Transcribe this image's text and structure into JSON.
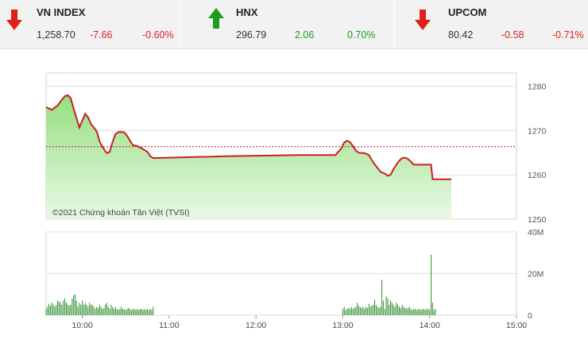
{
  "indices": [
    {
      "name": "VN INDEX",
      "value": "1,258.70",
      "change": "-7.66",
      "percent": "-0.60%",
      "direction": "down",
      "color": "#e0201b"
    },
    {
      "name": "HNX",
      "value": "296.79",
      "change": "2.06",
      "percent": "0.70%",
      "direction": "up",
      "color": "#1a9e1a"
    },
    {
      "name": "UPCOM",
      "value": "80.42",
      "change": "-0.58",
      "percent": "-0.71%",
      "direction": "down",
      "color": "#e0201b"
    }
  ],
  "chart_data": {
    "type": "area",
    "watermark": "©2021 Chứng khoán Tân Việt (TVSI)",
    "reference": 1266.36,
    "ylim": [
      1250,
      1283
    ],
    "y_ticks": [
      "1280",
      "1270",
      "1260",
      "1250"
    ],
    "y_tick_values": [
      1280,
      1270,
      1260,
      1250
    ],
    "x_ticks": [
      "10:00",
      "11:00",
      "12:00",
      "13:00",
      "14:00",
      "15:00"
    ],
    "x_tick_values": [
      600,
      660,
      720,
      780,
      840,
      900
    ],
    "xlim": [
      575,
      900
    ],
    "price": [
      [
        575,
        1275.3
      ],
      [
        579,
        1274.7
      ],
      [
        583,
        1275.7
      ],
      [
        585,
        1276.6
      ],
      [
        588,
        1277.8
      ],
      [
        590,
        1278.0
      ],
      [
        592,
        1277.3
      ],
      [
        594,
        1275.0
      ],
      [
        596,
        1272.8
      ],
      [
        598,
        1270.7
      ],
      [
        599,
        1271.5
      ],
      [
        601,
        1273.0
      ],
      [
        602,
        1273.8
      ],
      [
        604,
        1273.0
      ],
      [
        606,
        1271.5
      ],
      [
        608,
        1270.7
      ],
      [
        610,
        1269.8
      ],
      [
        612,
        1267.5
      ],
      [
        614,
        1266.3
      ],
      [
        616,
        1265.3
      ],
      [
        617,
        1264.9
      ],
      [
        619,
        1265.2
      ],
      [
        621,
        1267.5
      ],
      [
        623,
        1269.2
      ],
      [
        625,
        1269.7
      ],
      [
        627,
        1269.7
      ],
      [
        629,
        1269.6
      ],
      [
        631,
        1268.8
      ],
      [
        633,
        1267.7
      ],
      [
        635,
        1266.7
      ],
      [
        638,
        1266.5
      ],
      [
        641,
        1266.0
      ],
      [
        645,
        1265.2
      ],
      [
        647,
        1264.2
      ],
      [
        649,
        1263.8
      ],
      [
        700,
        1264.2
      ],
      [
        750,
        1264.5
      ],
      [
        775,
        1264.5
      ],
      [
        779,
        1266.0
      ],
      [
        781,
        1267.3
      ],
      [
        783,
        1267.7
      ],
      [
        785,
        1267.4
      ],
      [
        787,
        1266.5
      ],
      [
        789,
        1265.5
      ],
      [
        791,
        1265.0
      ],
      [
        795,
        1264.9
      ],
      [
        798,
        1264.5
      ],
      [
        801,
        1262.8
      ],
      [
        806,
        1260.7
      ],
      [
        809,
        1260.3
      ],
      [
        811,
        1259.8
      ],
      [
        813,
        1260.0
      ],
      [
        815,
        1261.3
      ],
      [
        817,
        1262.3
      ],
      [
        819,
        1263.2
      ],
      [
        821,
        1263.8
      ],
      [
        823,
        1263.9
      ],
      [
        825,
        1263.6
      ],
      [
        827,
        1263.0
      ],
      [
        829,
        1262.3
      ],
      [
        841,
        1262.3
      ],
      [
        842,
        1259.0
      ],
      [
        855,
        1259.0
      ]
    ],
    "volume": {
      "ylim": [
        0,
        40
      ],
      "y_ticks": [
        "40M",
        "20M",
        "0"
      ],
      "y_tick_values": [
        40,
        20,
        0
      ],
      "bars": [
        [
          575,
          3
        ],
        [
          576,
          4
        ],
        [
          577,
          5.5
        ],
        [
          578,
          4.5
        ],
        [
          579,
          6
        ],
        [
          580,
          5
        ],
        [
          581,
          4
        ],
        [
          582,
          5
        ],
        [
          583,
          7
        ],
        [
          584,
          6.5
        ],
        [
          585,
          6
        ],
        [
          586,
          5
        ],
        [
          587,
          7
        ],
        [
          588,
          8
        ],
        [
          589,
          6
        ],
        [
          590,
          5
        ],
        [
          591,
          4.5
        ],
        [
          592,
          5
        ],
        [
          593,
          8
        ],
        [
          594,
          9.5
        ],
        [
          595,
          10
        ],
        [
          596,
          7
        ],
        [
          597,
          4
        ],
        [
          598,
          6
        ],
        [
          599,
          5
        ],
        [
          600,
          7
        ],
        [
          601,
          5
        ],
        [
          602,
          6
        ],
        [
          603,
          5
        ],
        [
          604,
          4
        ],
        [
          605,
          6
        ],
        [
          606,
          5
        ],
        [
          607,
          5
        ],
        [
          608,
          4
        ],
        [
          609,
          3
        ],
        [
          610,
          4
        ],
        [
          611,
          3.5
        ],
        [
          612,
          5
        ],
        [
          613,
          4
        ],
        [
          614,
          3
        ],
        [
          615,
          3.5
        ],
        [
          616,
          5
        ],
        [
          617,
          6
        ],
        [
          618,
          4
        ],
        [
          619,
          3
        ],
        [
          620,
          5
        ],
        [
          621,
          4
        ],
        [
          622,
          3
        ],
        [
          623,
          4
        ],
        [
          624,
          3
        ],
        [
          625,
          2.5
        ],
        [
          626,
          3
        ],
        [
          627,
          4
        ],
        [
          628,
          3
        ],
        [
          629,
          3
        ],
        [
          630,
          2.5
        ],
        [
          631,
          3
        ],
        [
          632,
          3.5
        ],
        [
          633,
          3
        ],
        [
          634,
          2.5
        ],
        [
          635,
          3
        ],
        [
          636,
          3
        ],
        [
          637,
          2.5
        ],
        [
          638,
          3
        ],
        [
          639,
          2.5
        ],
        [
          640,
          3
        ],
        [
          641,
          3
        ],
        [
          642,
          2.5
        ],
        [
          643,
          3
        ],
        [
          644,
          2.5
        ],
        [
          645,
          3
        ],
        [
          646,
          2.5
        ],
        [
          647,
          3
        ],
        [
          648,
          2.5
        ],
        [
          649,
          4
        ],
        [
          780,
          3
        ],
        [
          781,
          4
        ],
        [
          782,
          2.5
        ],
        [
          783,
          3
        ],
        [
          784,
          3.5
        ],
        [
          785,
          3
        ],
        [
          786,
          4
        ],
        [
          787,
          3
        ],
        [
          788,
          3.5
        ],
        [
          789,
          4
        ],
        [
          790,
          6
        ],
        [
          791,
          4.5
        ],
        [
          792,
          4
        ],
        [
          793,
          3.5
        ],
        [
          794,
          4
        ],
        [
          795,
          3
        ],
        [
          796,
          4
        ],
        [
          797,
          3.5
        ],
        [
          798,
          5.5
        ],
        [
          799,
          4
        ],
        [
          800,
          4.5
        ],
        [
          801,
          5
        ],
        [
          802,
          7.5
        ],
        [
          803,
          5
        ],
        [
          804,
          4
        ],
        [
          805,
          3.5
        ],
        [
          806,
          4
        ],
        [
          807,
          17
        ],
        [
          808,
          7
        ],
        [
          809,
          3
        ],
        [
          810,
          9
        ],
        [
          811,
          8
        ],
        [
          812,
          5
        ],
        [
          813,
          7
        ],
        [
          814,
          6
        ],
        [
          815,
          5
        ],
        [
          816,
          4
        ],
        [
          817,
          6
        ],
        [
          818,
          5
        ],
        [
          819,
          4
        ],
        [
          820,
          3.5
        ],
        [
          821,
          5
        ],
        [
          822,
          4
        ],
        [
          823,
          3.5
        ],
        [
          824,
          3
        ],
        [
          825,
          3.5
        ],
        [
          826,
          4
        ],
        [
          827,
          3
        ],
        [
          828,
          2.5
        ],
        [
          829,
          3
        ],
        [
          830,
          3
        ],
        [
          831,
          2.5
        ],
        [
          832,
          3
        ],
        [
          833,
          3
        ],
        [
          834,
          2.5
        ],
        [
          835,
          3
        ],
        [
          836,
          3
        ],
        [
          837,
          2.5
        ],
        [
          838,
          3
        ],
        [
          839,
          3
        ],
        [
          840,
          2.5
        ],
        [
          841,
          29
        ],
        [
          842,
          6
        ],
        [
          843,
          2.5
        ],
        [
          844,
          3
        ]
      ]
    }
  }
}
